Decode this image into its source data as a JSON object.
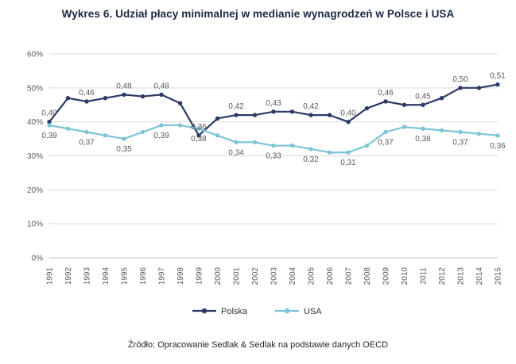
{
  "title": "Wykres 6. Udział płacy minimalnej w medianie wynagrodzeń w Polsce i USA",
  "source": "Źródło: Opracowanie Sedlak & Sedlak na podstawie danych OECD",
  "chart_data": {
    "type": "line",
    "title": "Wykres 6. Udział płacy minimalnej w medianie wynagrodzeń w Polsce i USA",
    "x": [
      1991,
      1992,
      1993,
      1994,
      1995,
      1996,
      1997,
      1998,
      1999,
      2000,
      2001,
      2002,
      2003,
      2004,
      2005,
      2006,
      2007,
      2008,
      2009,
      2010,
      2011,
      2012,
      2013,
      2014,
      2015
    ],
    "ylim": [
      0,
      0.6
    ],
    "yticks": [
      {
        "value": 0.0,
        "label": "0%"
      },
      {
        "value": 0.1,
        "label": "10%"
      },
      {
        "value": 0.2,
        "label": "20%"
      },
      {
        "value": 0.3,
        "label": "30%"
      },
      {
        "value": 0.4,
        "label": "40%"
      },
      {
        "value": 0.5,
        "label": "50%"
      },
      {
        "value": 0.6,
        "label": "60%"
      }
    ],
    "grid": true,
    "legend_position": "bottom",
    "series": [
      {
        "name": "Polska",
        "color": "#2b3a66",
        "label_dy": -8,
        "values": [
          0.4,
          0.47,
          0.46,
          0.47,
          0.48,
          0.475,
          0.48,
          0.455,
          0.36,
          0.41,
          0.42,
          0.42,
          0.43,
          0.43,
          0.42,
          0.42,
          0.4,
          0.44,
          0.46,
          0.45,
          0.45,
          0.47,
          0.5,
          0.5,
          0.51
        ],
        "labels": [
          "0,40",
          null,
          "0,46",
          null,
          "0,48",
          null,
          "0,48",
          null,
          "0,36",
          null,
          "0,42",
          null,
          "0,43",
          null,
          "0,42",
          null,
          "0,40",
          null,
          "0,46",
          null,
          "0,45",
          null,
          "0,50",
          null,
          "0,51"
        ]
      },
      {
        "name": "USA",
        "color": "#7cc5d6",
        "label_dy": 16,
        "values": [
          0.39,
          0.38,
          0.37,
          0.36,
          0.35,
          0.37,
          0.39,
          0.39,
          0.38,
          0.36,
          0.34,
          0.34,
          0.33,
          0.33,
          0.32,
          0.31,
          0.31,
          0.33,
          0.37,
          0.385,
          0.38,
          0.375,
          0.37,
          0.365,
          0.36
        ],
        "labels": [
          "0,39",
          null,
          "0,37",
          null,
          "0,35",
          null,
          "0,39",
          null,
          "0,38",
          null,
          "0,34",
          null,
          "0,33",
          null,
          "0,32",
          null,
          "0,31",
          null,
          "0,37",
          null,
          "0,38",
          null,
          "0,37",
          null,
          "0,36"
        ]
      }
    ]
  }
}
